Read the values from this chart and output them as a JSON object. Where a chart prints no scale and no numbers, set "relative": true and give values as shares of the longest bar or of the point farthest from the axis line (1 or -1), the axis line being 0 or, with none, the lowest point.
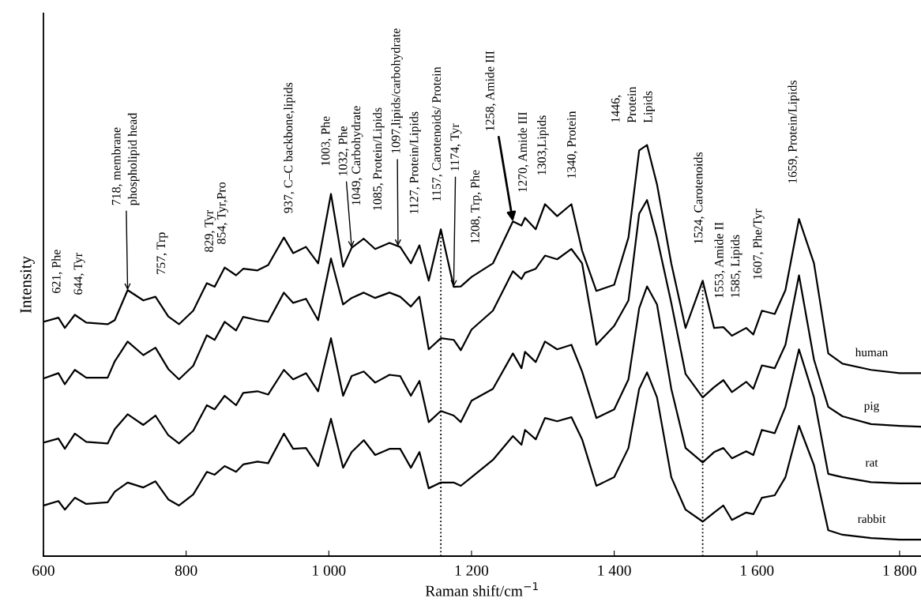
{
  "chart_data": {
    "type": "line",
    "relative": true,
    "xlabel": "Raman shift/cm$^{−1}$",
    "ylabel": "Intensity",
    "tick_labels": "x",
    "grid": false,
    "legend": false,
    "marker": "none",
    "line_style": "solid",
    "x": [
      600,
      621,
      630,
      644,
      660,
      690,
      700,
      718,
      740,
      757,
      775,
      790,
      810,
      829,
      840,
      854,
      870,
      880,
      900,
      915,
      937,
      950,
      968,
      985,
      1003,
      1020,
      1032,
      1049,
      1065,
      1085,
      1100,
      1115,
      1127,
      1140,
      1157,
      1175,
      1185,
      1200,
      1230,
      1258,
      1270,
      1275,
      1290,
      1303,
      1320,
      1340,
      1355,
      1375,
      1400,
      1420,
      1435,
      1446,
      1460,
      1480,
      1500,
      1524,
      1540,
      1553,
      1565,
      1585,
      1595,
      1607,
      1625,
      1640,
      1659,
      1680,
      1700,
      1720,
      1760,
      1800,
      1830
    ],
    "xlim": [
      600,
      1830
    ],
    "xticks": [
      600,
      800,
      {
        "value": 1000,
        "label": "1 000"
      },
      {
        "value": 1200,
        "label": "1 200"
      },
      {
        "value": 1400,
        "label": "1 400"
      },
      {
        "value": 1600,
        "label": "1 600"
      },
      {
        "value": 1800,
        "label": "1 800"
      }
    ],
    "series": [
      {
        "name": "human",
        "color": "#000000",
        "values": [
          0.57,
          0.58,
          0.555,
          0.587,
          0.568,
          0.564,
          0.574,
          0.647,
          0.622,
          0.631,
          0.583,
          0.564,
          0.597,
          0.664,
          0.655,
          0.702,
          0.683,
          0.699,
          0.695,
          0.708,
          0.775,
          0.737,
          0.752,
          0.712,
          0.881,
          0.704,
          0.75,
          0.772,
          0.747,
          0.762,
          0.752,
          0.712,
          0.756,
          0.67,
          0.795,
          0.655,
          0.656,
          0.679,
          0.712,
          0.814,
          0.804,
          0.823,
          0.795,
          0.856,
          0.827,
          0.856,
          0.743,
          0.645,
          0.66,
          0.775,
          0.987,
          1.0,
          0.904,
          0.712,
          0.555,
          0.67,
          0.555,
          0.557,
          0.536,
          0.555,
          0.539,
          0.597,
          0.589,
          0.647,
          0.82,
          0.712,
          0.493,
          0.468,
          0.453,
          0.445,
          0.445
        ]
      },
      {
        "name": "pig",
        "color": "#000000",
        "values": [
          0.432,
          0.445,
          0.418,
          0.453,
          0.434,
          0.434,
          0.474,
          0.522,
          0.489,
          0.507,
          0.455,
          0.43,
          0.463,
          0.537,
          0.526,
          0.57,
          0.549,
          0.582,
          0.574,
          0.57,
          0.641,
          0.616,
          0.626,
          0.574,
          0.724,
          0.612,
          0.628,
          0.641,
          0.628,
          0.641,
          0.631,
          0.607,
          0.631,
          0.503,
          0.53,
          0.526,
          0.501,
          0.551,
          0.597,
          0.693,
          0.674,
          0.689,
          0.699,
          0.731,
          0.722,
          0.747,
          0.712,
          0.514,
          0.56,
          0.622,
          0.833,
          0.866,
          0.775,
          0.616,
          0.443,
          0.386,
          0.411,
          0.428,
          0.399,
          0.424,
          0.407,
          0.464,
          0.457,
          0.514,
          0.683,
          0.478,
          0.363,
          0.34,
          0.321,
          0.317,
          0.315
        ]
      },
      {
        "name": "rat",
        "color": "#000000",
        "values": [
          0.276,
          0.286,
          0.261,
          0.298,
          0.278,
          0.274,
          0.309,
          0.345,
          0.319,
          0.342,
          0.294,
          0.274,
          0.305,
          0.367,
          0.357,
          0.39,
          0.367,
          0.397,
          0.401,
          0.393,
          0.453,
          0.43,
          0.445,
          0.401,
          0.53,
          0.39,
          0.438,
          0.449,
          0.422,
          0.441,
          0.438,
          0.39,
          0.426,
          0.326,
          0.353,
          0.342,
          0.326,
          0.378,
          0.407,
          0.493,
          0.457,
          0.497,
          0.472,
          0.522,
          0.503,
          0.514,
          0.449,
          0.336,
          0.357,
          0.43,
          0.603,
          0.656,
          0.612,
          0.407,
          0.263,
          0.228,
          0.253,
          0.263,
          0.238,
          0.255,
          0.246,
          0.307,
          0.299,
          0.363,
          0.503,
          0.386,
          0.2,
          0.192,
          0.18,
          0.177,
          0.177
        ]
      },
      {
        "name": "rabbit",
        "color": "#000000",
        "values": [
          0.123,
          0.134,
          0.113,
          0.142,
          0.127,
          0.131,
          0.157,
          0.179,
          0.167,
          0.182,
          0.138,
          0.123,
          0.15,
          0.205,
          0.198,
          0.219,
          0.205,
          0.223,
          0.23,
          0.226,
          0.298,
          0.261,
          0.263,
          0.219,
          0.334,
          0.215,
          0.253,
          0.282,
          0.246,
          0.261,
          0.261,
          0.215,
          0.253,
          0.165,
          0.179,
          0.179,
          0.171,
          0.192,
          0.234,
          0.292,
          0.271,
          0.307,
          0.284,
          0.336,
          0.328,
          0.338,
          0.284,
          0.171,
          0.192,
          0.263,
          0.407,
          0.447,
          0.386,
          0.192,
          0.113,
          0.084,
          0.106,
          0.123,
          0.088,
          0.106,
          0.102,
          0.142,
          0.148,
          0.192,
          0.317,
          0.221,
          0.063,
          0.052,
          0.044,
          0.04,
          0.04
        ]
      }
    ],
    "ref_lines": [
      {
        "axis": "x",
        "value": 1157,
        "color": "#000000",
        "line_style": "dotted"
      },
      {
        "axis": "x",
        "value": 1524,
        "color": "#000000",
        "line_style": "dotted"
      }
    ],
    "annotations": [
      {
        "text": "621, Phe",
        "x": 621,
        "y": 0.58
      },
      {
        "text": "644, Tyr",
        "x": 644,
        "y": 0.587
      },
      {
        "text": "718, membrane\nphospholipid head",
        "x": 718,
        "y": 0.647
      },
      {
        "text": "757, Trp",
        "x": 757,
        "y": 0.631
      },
      {
        "text": "829, Tyr",
        "x": 829,
        "y": 0.664
      },
      {
        "text": "854, Tyr,Pro",
        "x": 854,
        "y": 0.702
      },
      {
        "text": "937, C–C backbone,lipids",
        "x": 937,
        "y": 0.775
      },
      {
        "text": "1003, Phe",
        "x": 1003,
        "y": 0.881
      },
      {
        "text": "1032, Phe",
        "x": 1032,
        "y": 0.75
      },
      {
        "text": "1049, Carbohydrate",
        "x": 1049,
        "y": 0.772
      },
      {
        "text": "1085, Protein/Lipids",
        "x": 1085,
        "y": 0.762
      },
      {
        "text": "1097,lipids/carbohydrate",
        "x": 1097,
        "y": 0.754
      },
      {
        "text": "1127, Protein/Lipids",
        "x": 1127,
        "y": 0.756
      },
      {
        "text": "1157, Carotenoids/ Protein",
        "x": 1157,
        "y": 0.795
      },
      {
        "text": "1174, Tyr",
        "x": 1175,
        "y": 0.655
      },
      {
        "text": "1208, Trp, Phe",
        "x": 1208,
        "y": 0.679
      },
      {
        "text": "1258, Amide III",
        "x": 1258,
        "y": 0.814
      },
      {
        "text": "1270, Amide III",
        "x": 1270,
        "y": 0.804
      },
      {
        "text": "1303,Lipids",
        "x": 1303,
        "y": 0.856
      },
      {
        "text": "1340, Protein",
        "x": 1340,
        "y": 0.856
      },
      {
        "text": "1446,\nProtein\nLipids",
        "x": 1446,
        "y": 1.0
      },
      {
        "text": "1524, Carotenoids",
        "x": 1524,
        "y": 0.67
      },
      {
        "text": "1553, Amide II",
        "x": 1553,
        "y": 0.557
      },
      {
        "text": "1585, Lipids",
        "x": 1585,
        "y": 0.555
      },
      {
        "text": "1607, Phe/Tyr",
        "x": 1607,
        "y": 0.597
      },
      {
        "text": "1659, Protein/Lipids",
        "x": 1659,
        "y": 0.82
      }
    ]
  }
}
